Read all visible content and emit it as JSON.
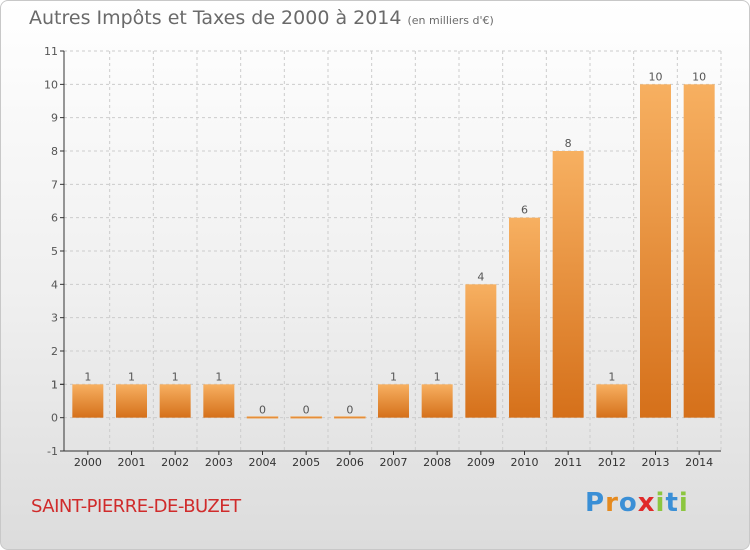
{
  "chart_title": "Autres Impôts et Taxes de 2000 à 2014",
  "chart_unit": "(en milliers d'€)",
  "town": "SAINT-PIERRE-DE-BUZET",
  "logo_text": "Proxiti",
  "colors": {
    "bar": "#f09a3e",
    "bar_light": "#f7b061",
    "bar_dark": "#d5701a",
    "town": "#d02b2b",
    "grid": "#cccccc",
    "axis": "#333333"
  },
  "chart_data": {
    "type": "bar",
    "categories": [
      "2000",
      "2001",
      "2002",
      "2003",
      "2004",
      "2005",
      "2006",
      "2007",
      "2008",
      "2009",
      "2010",
      "2011",
      "2012",
      "2013",
      "2014"
    ],
    "values": [
      1,
      1,
      1,
      1,
      0,
      0,
      0,
      1,
      1,
      4,
      6,
      8,
      1,
      10,
      10
    ],
    "data_labels": [
      "1",
      "1",
      "1",
      "1",
      "0",
      "0",
      "0",
      "1",
      "1",
      "4",
      "6",
      "8",
      "1",
      "10",
      "10"
    ],
    "y_ticks": [
      "-1",
      "0",
      "1",
      "1",
      "2",
      "3",
      "4",
      "5",
      "6",
      "7",
      "8",
      "9",
      "10",
      "11"
    ],
    "y_tick_values": [
      -1,
      0,
      1,
      1,
      2,
      3,
      4,
      5,
      6,
      7,
      8,
      9,
      10,
      11
    ],
    "ylim": [
      -1,
      11
    ],
    "grid": true
  }
}
